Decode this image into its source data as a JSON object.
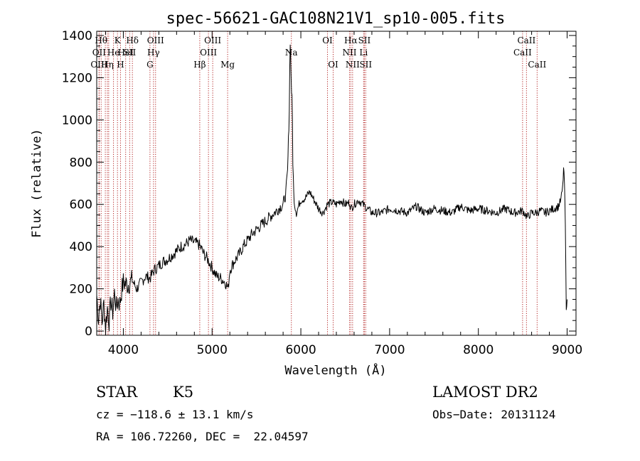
{
  "chart_data": {
    "type": "line",
    "title": "spec-56621-GAC108N21V1_sp10-005.fits",
    "xlabel": "Wavelength (Å)",
    "ylabel": "Flux (relative)",
    "xlim": [
      3700,
      9100
    ],
    "ylim": [
      -20,
      1420
    ],
    "xticks": [
      4000,
      5000,
      6000,
      7000,
      8000,
      9000
    ],
    "yticks": [
      0,
      200,
      400,
      600,
      800,
      1000,
      1200,
      1400
    ],
    "grid": false,
    "line_color": "#000000",
    "marker_color": "#b22222",
    "x": [
      3700,
      3720,
      3740,
      3760,
      3780,
      3800,
      3820,
      3840,
      3860,
      3880,
      3900,
      3920,
      3940,
      3960,
      3980,
      4000,
      4050,
      4100,
      4150,
      4200,
      4250,
      4300,
      4350,
      4400,
      4450,
      4500,
      4550,
      4600,
      4650,
      4700,
      4750,
      4800,
      4850,
      4880,
      4900,
      4950,
      5000,
      5050,
      5100,
      5150,
      5180,
      5200,
      5250,
      5300,
      5350,
      5400,
      5450,
      5500,
      5550,
      5600,
      5650,
      5700,
      5750,
      5800,
      5830,
      5850,
      5860,
      5870,
      5875,
      5880,
      5885,
      5890,
      5895,
      5900,
      5905,
      5910,
      5920,
      5930,
      5950,
      5980,
      6000,
      6050,
      6100,
      6150,
      6200,
      6250,
      6300,
      6350,
      6400,
      6450,
      6500,
      6550,
      6563,
      6600,
      6650,
      6700,
      6750,
      6800,
      6900,
      7000,
      7100,
      7200,
      7300,
      7400,
      7500,
      7600,
      7700,
      7800,
      7900,
      8000,
      8100,
      8200,
      8300,
      8400,
      8500,
      8550,
      8600,
      8650,
      8700,
      8750,
      8800,
      8850,
      8900,
      8930,
      8950,
      8960,
      8970,
      8980,
      8990,
      9000
    ],
    "y": [
      170,
      60,
      150,
      40,
      130,
      20,
      110,
      50,
      140,
      90,
      180,
      110,
      150,
      130,
      190,
      230,
      220,
      240,
      200,
      230,
      260,
      250,
      290,
      310,
      330,
      340,
      360,
      380,
      400,
      410,
      430,
      420,
      410,
      390,
      370,
      340,
      300,
      260,
      250,
      230,
      200,
      290,
      330,
      360,
      400,
      430,
      460,
      480,
      500,
      520,
      540,
      560,
      580,
      600,
      650,
      750,
      900,
      1050,
      1250,
      1380,
      1300,
      1220,
      1140,
      1100,
      1000,
      800,
      650,
      600,
      560,
      600,
      620,
      630,
      660,
      620,
      580,
      560,
      600,
      610,
      600,
      620,
      600,
      610,
      580,
      600,
      620,
      600,
      580,
      560,
      560,
      580,
      570,
      560,
      590,
      560,
      580,
      570,
      560,
      590,
      570,
      580,
      570,
      560,
      580,
      560,
      570,
      540,
      560,
      560,
      570,
      560,
      570,
      580,
      590,
      620,
      680,
      770,
      700,
      500,
      120,
      150
    ],
    "lines": [
      {
        "x": 3750,
        "label": "Hθ",
        "row": 0
      },
      {
        "x": 3727,
        "label": "OII",
        "row": 1
      },
      {
        "x": 3727,
        "label": "OIII",
        "row": 2
      },
      {
        "x": 3797,
        "label": "",
        "row": -1
      },
      {
        "x": 3835,
        "label": "",
        "row": -1
      },
      {
        "x": 3889,
        "label": "He",
        "row": 1
      },
      {
        "x": 3820,
        "label": "Hη",
        "row": 2
      },
      {
        "x": 3934,
        "label": "K",
        "row": 0
      },
      {
        "x": 3968,
        "label": "H",
        "row": 2
      },
      {
        "x": 4026,
        "label": "HeI",
        "row": 1
      },
      {
        "x": 4072,
        "label": "SII",
        "row": 1
      },
      {
        "x": 4102,
        "label": "Hδ",
        "row": 0
      },
      {
        "x": 4300,
        "label": "G",
        "row": 2
      },
      {
        "x": 4340,
        "label": "Hγ",
        "row": 1
      },
      {
        "x": 4363,
        "label": "OIII",
        "row": 0
      },
      {
        "x": 4861,
        "label": "Hβ",
        "row": 2
      },
      {
        "x": 4959,
        "label": "OIII",
        "row": 1
      },
      {
        "x": 5007,
        "label": "OIII",
        "row": 0
      },
      {
        "x": 5175,
        "label": "Mg",
        "row": 2
      },
      {
        "x": 5893,
        "label": "Na",
        "row": 1
      },
      {
        "x": 6300,
        "label": "OI",
        "row": 0
      },
      {
        "x": 6364,
        "label": "OI",
        "row": 2
      },
      {
        "x": 6548,
        "label": "NII",
        "row": 1
      },
      {
        "x": 6563,
        "label": "Hα",
        "row": 0
      },
      {
        "x": 6583,
        "label": "NII",
        "row": 2
      },
      {
        "x": 6707,
        "label": "Li",
        "row": 1
      },
      {
        "x": 6716,
        "label": "SII",
        "row": 0
      },
      {
        "x": 6731,
        "label": "SII",
        "row": 2
      },
      {
        "x": 8498,
        "label": "CaII",
        "row": 1
      },
      {
        "x": 8542,
        "label": "CaII",
        "row": 0
      },
      {
        "x": 8662,
        "label": "CaII",
        "row": 2
      }
    ]
  },
  "info": {
    "object_class": "STAR",
    "subclass": "K5",
    "velocity": "cz = −118.6 ± 13.1 km/s",
    "coordinates": "RA = 106.72260, DEC =  22.04597",
    "survey": "LAMOST DR2",
    "obs_date": "Obs−Date: 20131124"
  }
}
